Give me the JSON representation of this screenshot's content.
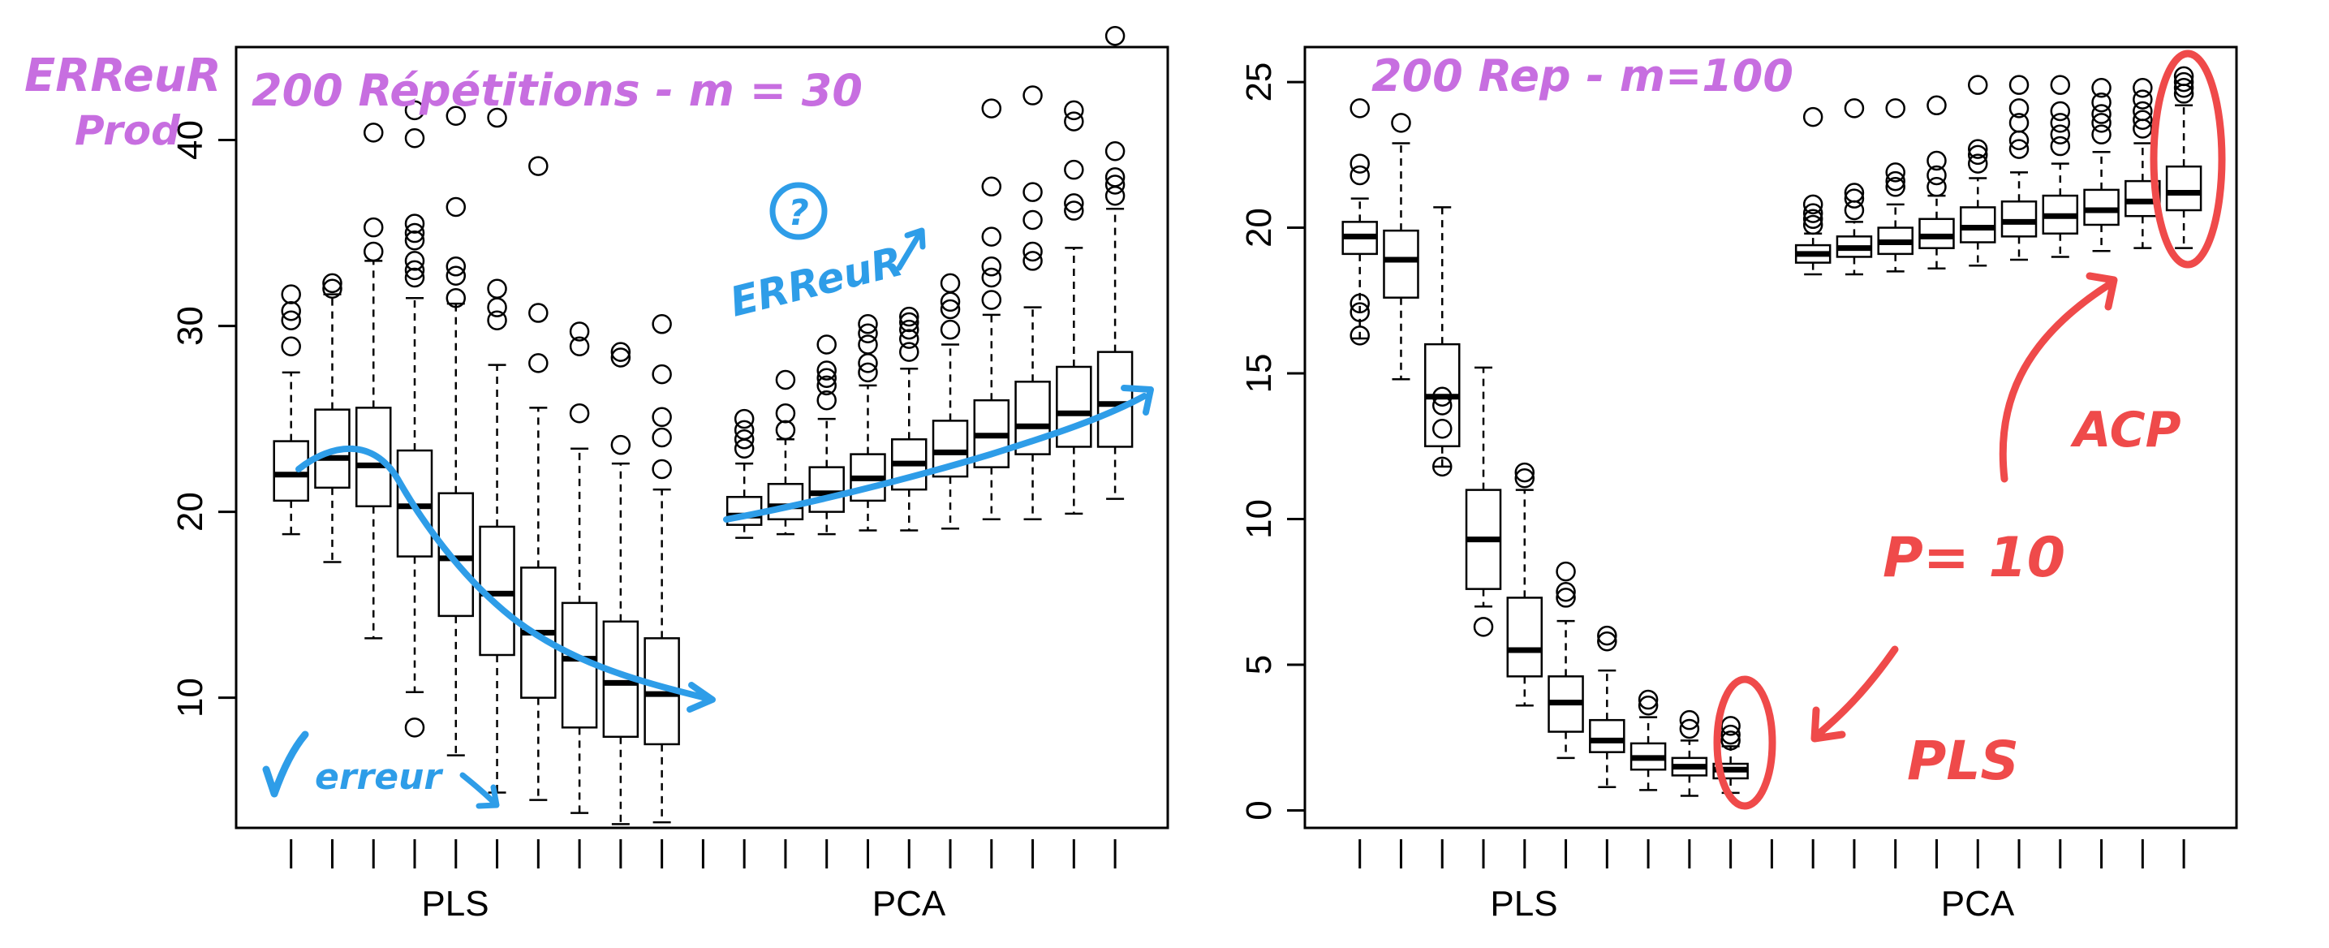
{
  "colors": {
    "axis": "#000000",
    "box": "#000000",
    "annotation_purple": "#c76ee0",
    "annotation_blue": "#2e9de8",
    "annotation_red": "#ef4a4a"
  },
  "annotations": {
    "left_ylabel_line1": "ERReuR",
    "left_ylabel_line2": "Prod",
    "left_title": "200 Répétitions - m = 30",
    "left_question": "?",
    "left_erreur_up": "ERReuR",
    "left_erreur_down": "erreur",
    "right_title": "200 Rep - m=100",
    "right_acp": "ACP",
    "right_p10": "P= 10",
    "right_pls": "PLS"
  },
  "chart_data": [
    {
      "type": "box",
      "title": "",
      "xlabel": "",
      "ylabel": "",
      "ylim": [
        3,
        45
      ],
      "yticks": [
        10,
        20,
        30,
        40
      ],
      "group_labels": [
        "PLS",
        "PCA"
      ],
      "grid": false,
      "series": [
        {
          "name": "PLS",
          "boxes": [
            {
              "min": 18.8,
              "q1": 20.6,
              "median": 22.0,
              "q3": 23.8,
              "max": 27.5,
              "outliers": [
                28.9,
                30.3,
                30.8,
                31.7
              ]
            },
            {
              "min": 17.3,
              "q1": 21.3,
              "median": 22.9,
              "q3": 25.5,
              "max": 31.7,
              "outliers": [
                32.0,
                32.3
              ]
            },
            {
              "min": 13.2,
              "q1": 20.3,
              "median": 22.5,
              "q3": 25.6,
              "max": 33.5,
              "outliers": [
                34.0,
                35.3,
                40.4
              ]
            },
            {
              "min": 10.3,
              "q1": 17.6,
              "median": 20.3,
              "q3": 23.3,
              "max": 31.5,
              "outliers": [
                8.4,
                32.6,
                33.0,
                33.5,
                34.6,
                35.0,
                35.5,
                40.1,
                41.6
              ]
            },
            {
              "min": 6.9,
              "q1": 14.4,
              "median": 17.5,
              "q3": 21.0,
              "max": 31.2,
              "outliers": [
                31.5,
                32.7,
                33.2,
                36.4,
                41.3
              ]
            },
            {
              "min": 4.9,
              "q1": 12.3,
              "median": 15.6,
              "q3": 19.2,
              "max": 27.9,
              "outliers": [
                30.3,
                31.0,
                32.0,
                41.2
              ]
            },
            {
              "min": 4.5,
              "q1": 10.0,
              "median": 13.5,
              "q3": 17.0,
              "max": 25.6,
              "outliers": [
                28.0,
                30.7,
                38.6
              ]
            },
            {
              "min": 3.8,
              "q1": 8.4,
              "median": 12.1,
              "q3": 15.1,
              "max": 23.4,
              "outliers": [
                25.3,
                28.9,
                29.7
              ]
            },
            {
              "min": 3.2,
              "q1": 7.9,
              "median": 10.8,
              "q3": 14.1,
              "max": 22.6,
              "outliers": [
                23.6,
                28.3,
                28.6
              ]
            },
            {
              "min": 3.3,
              "q1": 7.5,
              "median": 10.2,
              "q3": 13.2,
              "max": 21.2,
              "outliers": [
                22.3,
                24.0,
                25.1,
                27.4,
                30.1
              ]
            }
          ]
        },
        {
          "name": "PCA",
          "boxes": [
            {
              "min": 18.6,
              "q1": 19.3,
              "median": 19.8,
              "q3": 20.8,
              "max": 22.6,
              "outliers": [
                23.4,
                23.9,
                24.4,
                25.0
              ]
            },
            {
              "min": 18.8,
              "q1": 19.6,
              "median": 20.3,
              "q3": 21.5,
              "max": 23.9,
              "outliers": [
                24.4,
                25.3,
                27.1
              ]
            },
            {
              "min": 18.8,
              "q1": 20.0,
              "median": 21.0,
              "q3": 22.4,
              "max": 25.0,
              "outliers": [
                26.0,
                26.8,
                27.2,
                27.6,
                29.0
              ]
            },
            {
              "min": 19.0,
              "q1": 20.6,
              "median": 21.8,
              "q3": 23.1,
              "max": 26.8,
              "outliers": [
                27.5,
                28.0,
                29.0,
                29.6,
                30.1
              ]
            },
            {
              "min": 19.0,
              "q1": 21.2,
              "median": 22.6,
              "q3": 23.9,
              "max": 27.7,
              "outliers": [
                28.6,
                29.3,
                29.8,
                30.2,
                30.5
              ]
            },
            {
              "min": 19.1,
              "q1": 21.9,
              "median": 23.2,
              "q3": 24.9,
              "max": 29.0,
              "outliers": [
                29.8,
                30.9,
                31.3,
                32.3
              ]
            },
            {
              "min": 19.6,
              "q1": 22.4,
              "median": 24.1,
              "q3": 26.0,
              "max": 30.6,
              "outliers": [
                31.4,
                32.6,
                33.2,
                34.8,
                37.5,
                41.7
              ]
            },
            {
              "min": 19.6,
              "q1": 23.1,
              "median": 24.6,
              "q3": 27.0,
              "max": 31.0,
              "outliers": [
                33.5,
                34.0,
                35.7,
                37.2,
                42.4
              ]
            },
            {
              "min": 19.9,
              "q1": 23.5,
              "median": 25.3,
              "q3": 27.8,
              "max": 34.2,
              "outliers": [
                36.2,
                36.6,
                38.4,
                41.0,
                41.6
              ]
            },
            {
              "min": 20.7,
              "q1": 23.5,
              "median": 25.8,
              "q3": 28.6,
              "max": 36.3,
              "outliers": [
                37.0,
                37.6,
                38.0,
                39.4,
                45.6
              ]
            }
          ]
        }
      ]
    },
    {
      "type": "box",
      "title": "",
      "xlabel": "",
      "ylabel": "",
      "ylim": [
        -0.6,
        26.2
      ],
      "yticks": [
        0,
        5,
        10,
        15,
        20,
        25
      ],
      "group_labels": [
        "PLS",
        "PCA"
      ],
      "grid": false,
      "series": [
        {
          "name": "PLS",
          "boxes": [
            {
              "min": 16.2,
              "q1": 19.1,
              "median": 19.7,
              "q3": 20.2,
              "max": 21.0,
              "outliers": [
                16.3,
                17.1,
                17.4,
                21.8,
                22.2,
                24.1
              ]
            },
            {
              "min": 14.8,
              "q1": 17.6,
              "median": 18.9,
              "q3": 19.9,
              "max": 22.9,
              "outliers": [
                23.6
              ]
            },
            {
              "min": 11.8,
              "q1": 12.5,
              "median": 14.2,
              "q3": 16.0,
              "max": 20.7,
              "outliers": [
                11.8,
                13.1,
                13.9,
                14.2
              ]
            },
            {
              "min": 7.0,
              "q1": 7.6,
              "median": 9.3,
              "q3": 11.0,
              "max": 15.2,
              "outliers": [
                6.3
              ]
            },
            {
              "min": 3.6,
              "q1": 4.6,
              "median": 5.5,
              "q3": 7.3,
              "max": 11.0,
              "outliers": [
                11.4,
                11.6
              ]
            },
            {
              "min": 1.8,
              "q1": 2.7,
              "median": 3.7,
              "q3": 4.6,
              "max": 6.5,
              "outliers": [
                7.3,
                7.5,
                8.2
              ]
            },
            {
              "min": 0.8,
              "q1": 2.0,
              "median": 2.4,
              "q3": 3.1,
              "max": 4.8,
              "outliers": [
                5.8,
                6.0
              ]
            },
            {
              "min": 0.7,
              "q1": 1.4,
              "median": 1.8,
              "q3": 2.3,
              "max": 3.2,
              "outliers": [
                3.6,
                3.8
              ]
            },
            {
              "min": 0.5,
              "q1": 1.2,
              "median": 1.5,
              "q3": 1.8,
              "max": 2.4,
              "outliers": [
                2.8,
                3.1
              ]
            },
            {
              "min": 0.6,
              "q1": 1.1,
              "median": 1.4,
              "q3": 1.6,
              "max": 2.2,
              "outliers": [
                2.4,
                2.6,
                2.9
              ]
            }
          ]
        },
        {
          "name": "PCA",
          "boxes": [
            {
              "min": 18.4,
              "q1": 18.8,
              "median": 19.1,
              "q3": 19.4,
              "max": 19.8,
              "outliers": [
                20.1,
                20.3,
                20.5,
                20.8,
                23.8
              ]
            },
            {
              "min": 18.4,
              "q1": 19.0,
              "median": 19.3,
              "q3": 19.7,
              "max": 20.2,
              "outliers": [
                20.6,
                21.0,
                21.2,
                24.1
              ]
            },
            {
              "min": 18.5,
              "q1": 19.1,
              "median": 19.5,
              "q3": 20.0,
              "max": 20.8,
              "outliers": [
                21.4,
                21.6,
                21.9,
                24.1
              ]
            },
            {
              "min": 18.6,
              "q1": 19.3,
              "median": 19.7,
              "q3": 20.3,
              "max": 21.1,
              "outliers": [
                21.4,
                21.8,
                22.3,
                24.2
              ]
            },
            {
              "min": 18.7,
              "q1": 19.5,
              "median": 20.0,
              "q3": 20.7,
              "max": 21.7,
              "outliers": [
                22.2,
                22.5,
                22.7,
                24.9
              ]
            },
            {
              "min": 18.9,
              "q1": 19.7,
              "median": 20.2,
              "q3": 20.9,
              "max": 21.9,
              "outliers": [
                22.7,
                23.0,
                23.6,
                24.1,
                24.9
              ]
            },
            {
              "min": 19.0,
              "q1": 19.8,
              "median": 20.4,
              "q3": 21.1,
              "max": 22.2,
              "outliers": [
                22.8,
                23.2,
                23.6,
                24.0,
                24.9
              ]
            },
            {
              "min": 19.2,
              "q1": 20.1,
              "median": 20.6,
              "q3": 21.3,
              "max": 22.6,
              "outliers": [
                23.2,
                23.6,
                23.9,
                24.3,
                24.8
              ]
            },
            {
              "min": 19.3,
              "q1": 20.4,
              "median": 20.9,
              "q3": 21.6,
              "max": 22.9,
              "outliers": [
                23.4,
                23.7,
                24.0,
                24.4,
                24.8
              ]
            },
            {
              "min": 19.3,
              "q1": 20.6,
              "median": 21.2,
              "q3": 22.1,
              "max": 24.2,
              "outliers": [
                24.6,
                24.8,
                25.0,
                25.2
              ]
            }
          ]
        }
      ]
    }
  ]
}
